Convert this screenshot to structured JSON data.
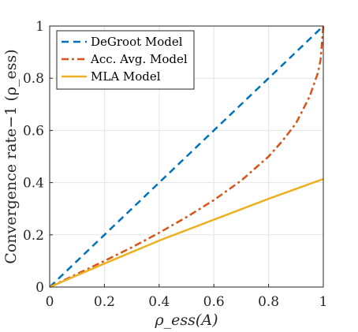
{
  "chart_data": {
    "type": "line",
    "xlabel": "ρ_ess(A)",
    "ylabel": "Convergence rate−1 (ρ_ess)",
    "xlim": [
      0,
      1
    ],
    "ylim": [
      0,
      1
    ],
    "x_ticks": [
      "0",
      "0.2",
      "0.4",
      "0.6",
      "0.8",
      "1"
    ],
    "y_ticks": [
      "0",
      "0.2",
      "0.4",
      "0.6",
      "0.8",
      "1"
    ],
    "grid": true,
    "legend_position": "top-left",
    "series": [
      {
        "name": "DeGroot Model",
        "color": "#0072BD",
        "style": "dashed",
        "x": [
          0,
          1
        ],
        "y": [
          0,
          1
        ]
      },
      {
        "name": "Acc. Avg. Model",
        "color": "#D95319",
        "style": "dash-dot",
        "x": [
          0,
          0.1,
          0.2,
          0.3,
          0.4,
          0.5,
          0.6,
          0.7,
          0.8,
          0.85,
          0.9,
          0.95,
          0.98,
          0.99,
          1
        ],
        "y": [
          0,
          0.05,
          0.1,
          0.152,
          0.208,
          0.268,
          0.333,
          0.408,
          0.5,
          0.559,
          0.627,
          0.73,
          0.82,
          0.87,
          1
        ]
      },
      {
        "name": "MLA Model",
        "color": "#EDB120",
        "style": "solid",
        "x": [
          0,
          0.2,
          0.4,
          0.6,
          0.8,
          1
        ],
        "y": [
          0,
          0.09,
          0.178,
          0.258,
          0.338,
          0.414
        ]
      }
    ]
  }
}
